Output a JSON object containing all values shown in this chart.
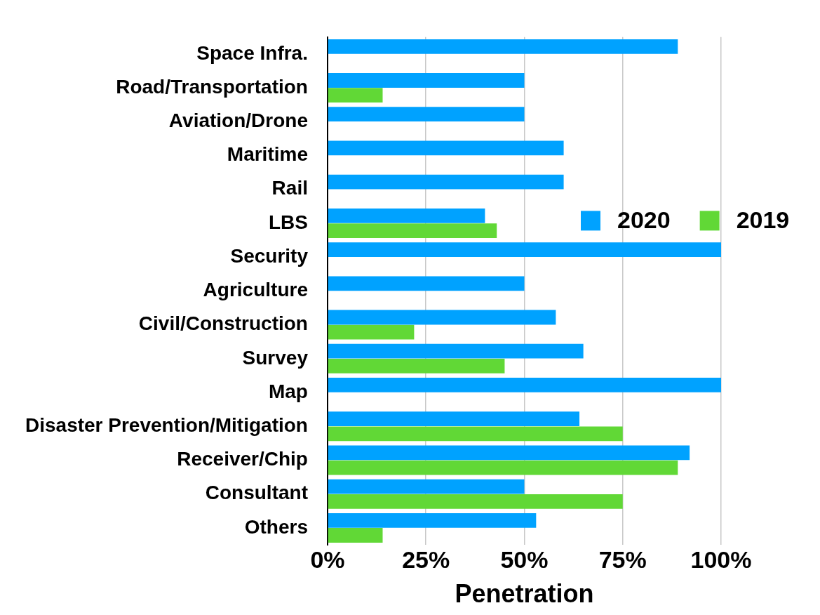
{
  "chart_data": {
    "type": "bar",
    "orientation": "horizontal",
    "xlabel": "Penetration",
    "categories": [
      "Space Infra.",
      "Road/Transportation",
      "Aviation/Drone",
      "Maritime",
      "Rail",
      "LBS",
      "Security",
      "Agriculture",
      "Civil/Construction",
      "Survey",
      "Map",
      "Disaster Prevention/Mitigation",
      "Receiver/Chip",
      "Consultant",
      "Others"
    ],
    "series": [
      {
        "name": "2020",
        "color": "#00a2ff",
        "values": [
          89,
          50,
          50,
          60,
          60,
          40,
          100,
          50,
          58,
          65,
          100,
          64,
          92,
          50,
          53
        ]
      },
      {
        "name": "2019",
        "color": "#61d836",
        "values": [
          null,
          14,
          null,
          null,
          null,
          43,
          null,
          null,
          22,
          45,
          null,
          75,
          89,
          75,
          14
        ]
      }
    ],
    "xlim": [
      0,
      100
    ],
    "xticks": [
      {
        "value": 0,
        "label": "0%"
      },
      {
        "value": 25,
        "label": "25%"
      },
      {
        "value": 50,
        "label": "50%"
      },
      {
        "value": 75,
        "label": "75%"
      },
      {
        "value": 100,
        "label": "100%"
      }
    ],
    "grid": "x",
    "legend": "right"
  }
}
